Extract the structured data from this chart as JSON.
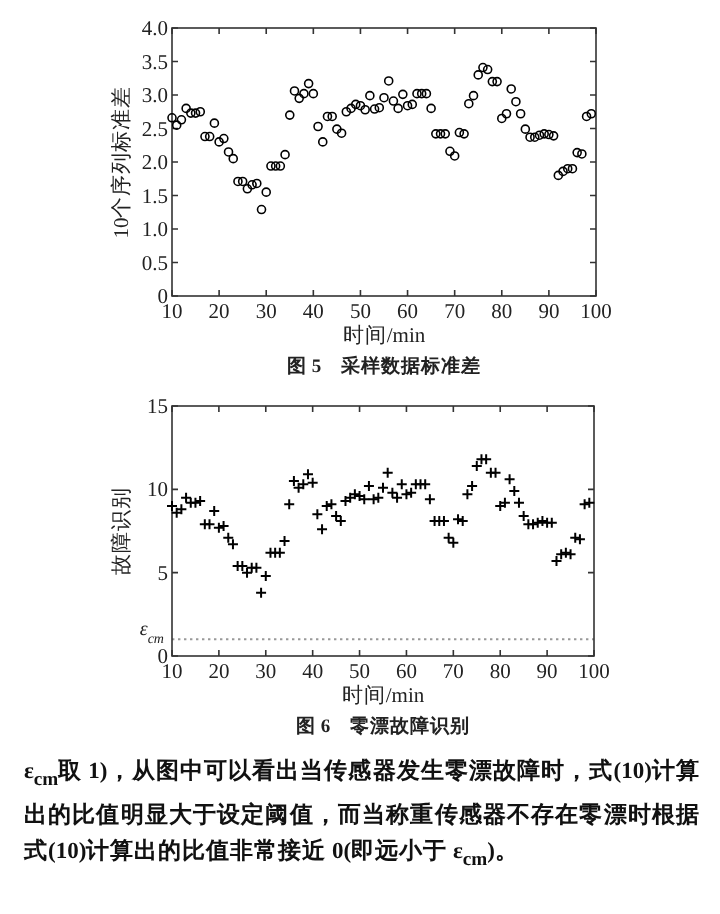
{
  "chart_data": [
    {
      "type": "scatter",
      "title": "图 5　采样数据标准差",
      "xlabel": "时间/min",
      "ylabel": "10个序列标准差",
      "marker": "circle",
      "grid": false,
      "x": [
        10,
        11,
        12,
        13,
        14,
        15,
        16,
        17,
        18,
        19,
        20,
        21,
        22,
        23,
        24,
        25,
        26,
        27,
        28,
        29,
        30,
        31,
        32,
        33,
        34,
        35,
        36,
        37,
        38,
        39,
        40,
        41,
        42,
        43,
        44,
        45,
        46,
        47,
        48,
        49,
        50,
        51,
        52,
        53,
        54,
        55,
        56,
        57,
        58,
        59,
        60,
        61,
        62,
        63,
        64,
        65,
        66,
        67,
        68,
        69,
        70,
        71,
        72,
        73,
        74,
        75,
        76,
        77,
        78,
        79,
        80,
        81,
        82,
        83,
        84,
        85,
        86,
        87,
        88,
        89,
        90,
        91,
        92,
        93,
        94,
        95,
        96,
        97,
        98,
        99
      ],
      "series": [
        {
          "color": "#000000",
          "values": [
            2.66,
            2.55,
            2.63,
            2.8,
            2.73,
            2.73,
            2.75,
            2.38,
            2.38,
            2.58,
            2.3,
            2.35,
            2.15,
            2.05,
            1.71,
            1.71,
            1.6,
            1.66,
            1.68,
            1.29,
            1.55,
            1.94,
            1.94,
            1.94,
            2.11,
            2.7,
            3.06,
            2.95,
            3.02,
            3.17,
            3.02,
            2.53,
            2.3,
            2.68,
            2.68,
            2.49,
            2.43,
            2.75,
            2.8,
            2.86,
            2.84,
            2.78,
            2.99,
            2.79,
            2.81,
            2.96,
            3.21,
            2.91,
            2.8,
            3.01,
            2.84,
            2.86,
            3.02,
            3.02,
            3.02,
            2.8,
            2.42,
            2.42,
            2.42,
            2.16,
            2.09,
            2.44,
            2.42,
            2.87,
            2.99,
            3.3,
            3.41,
            3.38,
            3.2,
            3.2,
            2.65,
            2.72,
            3.09,
            2.9,
            2.72,
            2.49,
            2.37,
            2.37,
            2.4,
            2.42,
            2.41,
            2.39,
            1.8,
            1.86,
            1.9,
            1.9,
            2.14,
            2.12,
            2.68,
            2.72
          ]
        }
      ],
      "xlim": [
        10,
        100
      ],
      "xticks": [
        10,
        20,
        30,
        40,
        50,
        60,
        70,
        80,
        90,
        100
      ],
      "ylim": [
        0,
        4
      ],
      "yticks": [
        0,
        {
          "value": 0.5,
          "label": "0.5"
        },
        {
          "value": 1,
          "label": "1.0"
        },
        {
          "value": 1.5,
          "label": "1.5"
        },
        {
          "value": 2,
          "label": "2.0"
        },
        {
          "value": 2.5,
          "label": "2.5"
        },
        {
          "value": 3,
          "label": "3.0"
        },
        {
          "value": 3.5,
          "label": "3.5"
        },
        {
          "value": 4,
          "label": "4.0"
        }
      ]
    },
    {
      "type": "scatter",
      "title": "图 6　零漂故障识别",
      "xlabel": "时间/min",
      "ylabel": "故障识别",
      "marker": "cross",
      "grid": false,
      "x": [
        10,
        11,
        12,
        13,
        14,
        15,
        16,
        17,
        18,
        19,
        20,
        21,
        22,
        23,
        24,
        25,
        26,
        27,
        28,
        29,
        30,
        31,
        32,
        33,
        34,
        35,
        36,
        37,
        38,
        39,
        40,
        41,
        42,
        43,
        44,
        45,
        46,
        47,
        48,
        49,
        50,
        51,
        52,
        53,
        54,
        55,
        56,
        57,
        58,
        59,
        60,
        61,
        62,
        63,
        64,
        65,
        66,
        67,
        68,
        69,
        70,
        71,
        72,
        73,
        74,
        75,
        76,
        77,
        78,
        79,
        80,
        81,
        82,
        83,
        84,
        85,
        86,
        87,
        88,
        89,
        90,
        91,
        92,
        93,
        94,
        95,
        96,
        97,
        98,
        99
      ],
      "series": [
        {
          "color": "#000000",
          "values": [
            9.0,
            8.6,
            8.8,
            9.5,
            9.2,
            9.2,
            9.3,
            7.9,
            7.9,
            8.7,
            7.7,
            7.8,
            7.1,
            6.7,
            5.4,
            5.4,
            5.0,
            5.3,
            5.3,
            3.8,
            4.8,
            6.2,
            6.2,
            6.2,
            6.9,
            9.1,
            10.5,
            10.1,
            10.3,
            10.9,
            10.4,
            8.5,
            7.6,
            9.0,
            9.1,
            8.4,
            8.1,
            9.3,
            9.5,
            9.7,
            9.6,
            9.4,
            10.2,
            9.4,
            9.5,
            10.1,
            11.0,
            9.8,
            9.5,
            10.3,
            9.7,
            9.8,
            10.3,
            10.3,
            10.3,
            9.4,
            8.1,
            8.1,
            8.1,
            7.1,
            6.8,
            8.2,
            8.1,
            9.7,
            10.2,
            11.4,
            11.8,
            11.8,
            11.0,
            11.0,
            9.0,
            9.2,
            10.6,
            9.9,
            9.2,
            8.4,
            7.9,
            7.9,
            8.0,
            8.1,
            8.0,
            8.0,
            5.7,
            6.1,
            6.2,
            6.1,
            7.1,
            7.0,
            9.1,
            9.2
          ]
        }
      ],
      "xlim": [
        10,
        100
      ],
      "xticks": [
        10,
        20,
        30,
        40,
        50,
        60,
        70,
        80,
        90,
        100
      ],
      "ylim": [
        0,
        15
      ],
      "yticks": [
        0,
        5,
        10,
        15
      ],
      "ref_lines": [
        {
          "axis": "y",
          "value": 1,
          "label": "ε$_{cm}$",
          "color": "#999999",
          "line_style": "dotted"
        }
      ],
      "annotations": [
        "ε$_{cm}$取 1)，从图中可以看出当传感器发生零漂故障时，式(10)计算出的比值明显大于设定阈值，而当称重传感器不存在零漂时根据式(10)计算出的比值非常接近 0(即远小于 ε$_{cm}$)。"
      ]
    }
  ]
}
